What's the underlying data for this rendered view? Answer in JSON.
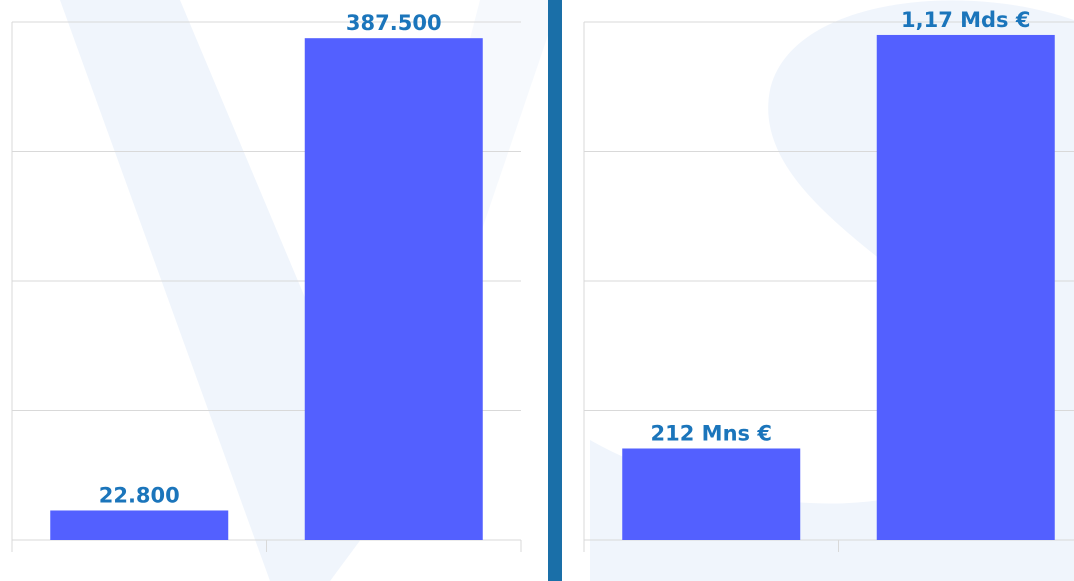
{
  "chart_data": [
    {
      "type": "bar",
      "categories": [
        null,
        null
      ],
      "values": [
        22800,
        387500
      ],
      "value_labels": [
        "22.800",
        "387.500"
      ],
      "color": "#5360ff",
      "ylim": [
        0,
        400000
      ],
      "yticks": [
        0,
        100000,
        200000,
        300000,
        400000
      ],
      "grid": true
    },
    {
      "type": "bar",
      "categories": [
        null,
        null
      ],
      "values": [
        212000000,
        1170000000
      ],
      "value_labels": [
        "212 Mns €",
        "1,17 Mds €"
      ],
      "color": "#5360ff",
      "ylim": [
        0,
        1200000000
      ],
      "yticks": [
        0,
        300000000,
        600000000,
        900000000,
        1200000000
      ],
      "grid": true
    }
  ]
}
